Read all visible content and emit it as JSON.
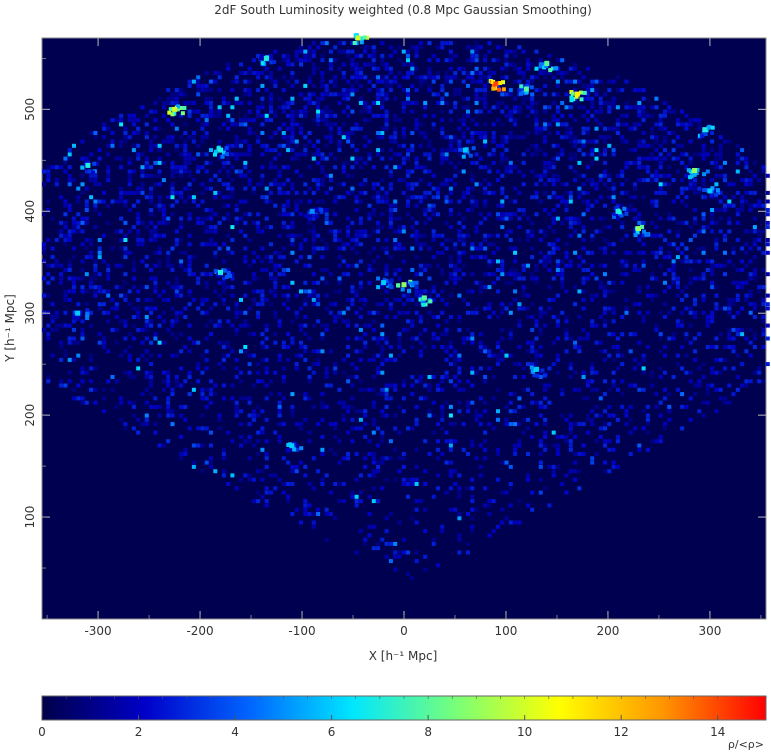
{
  "chart_data": {
    "type": "heatmap",
    "title": "2dF South Luminosity weighted (0.8 Mpc Gaussian Smoothing)",
    "xlabel": "X [h⁻¹ Mpc]",
    "ylabel": "Y [h⁻¹ Mpc]",
    "xlim": [
      -355,
      355
    ],
    "ylim": [
      0,
      570
    ],
    "x_ticks": [
      -300,
      -200,
      -100,
      0,
      100,
      200,
      300
    ],
    "y_ticks": [
      100,
      200,
      300,
      400,
      500
    ],
    "colorbar": {
      "label": "ρ/<ρ>",
      "range": [
        0,
        15
      ],
      "ticks": [
        0,
        2,
        4,
        6,
        8,
        10,
        12,
        14
      ],
      "colormap": [
        "#00004a",
        "#0000c8",
        "#0064ff",
        "#00e6ff",
        "#78ff78",
        "#ffff00",
        "#ff9600",
        "#ff0000"
      ]
    },
    "background_color": "#000050",
    "field": "luminosity-weighted galaxy density, fan-shaped survey slice",
    "overdensities": [
      {
        "x": 170,
        "y": 515,
        "value": 11
      },
      {
        "x": 90,
        "y": 525,
        "value": 14
      },
      {
        "x": 120,
        "y": 520,
        "value": 8
      },
      {
        "x": 230,
        "y": 383,
        "value": 9
      },
      {
        "x": 210,
        "y": 400,
        "value": 7
      },
      {
        "x": 285,
        "y": 440,
        "value": 9
      },
      {
        "x": 300,
        "y": 420,
        "value": 6
      },
      {
        "x": 295,
        "y": 480,
        "value": 7
      },
      {
        "x": -225,
        "y": 500,
        "value": 10
      },
      {
        "x": -180,
        "y": 460,
        "value": 7
      },
      {
        "x": -45,
        "y": 570,
        "value": 10
      },
      {
        "x": 0,
        "y": 328,
        "value": 9
      },
      {
        "x": 20,
        "y": 315,
        "value": 8
      },
      {
        "x": -20,
        "y": 330,
        "value": 6
      },
      {
        "x": -135,
        "y": 550,
        "value": 7
      },
      {
        "x": -310,
        "y": 445,
        "value": 7
      },
      {
        "x": 140,
        "y": 545,
        "value": 8
      },
      {
        "x": 60,
        "y": 460,
        "value": 6
      },
      {
        "x": -90,
        "y": 400,
        "value": 5
      },
      {
        "x": -320,
        "y": 300,
        "value": 6
      },
      {
        "x": -180,
        "y": 340,
        "value": 7
      },
      {
        "x": -110,
        "y": 170,
        "value": 6
      },
      {
        "x": 130,
        "y": 245,
        "value": 6
      }
    ]
  }
}
